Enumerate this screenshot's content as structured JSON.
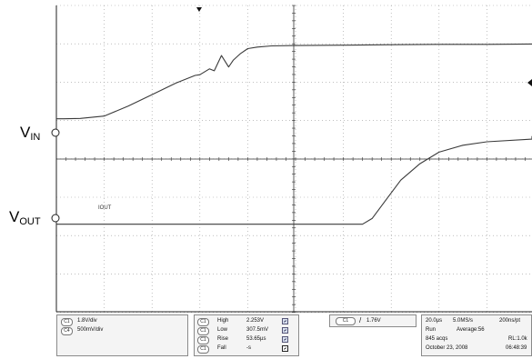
{
  "labels": {
    "vin_main": "V",
    "vin_sub": "IN",
    "vout_main": "V",
    "vout_sub": "OUT",
    "trace_tag": "IOUT"
  },
  "channels": {
    "c1_scale": "1.8V/div",
    "c4_scale": "500mV/div"
  },
  "measurements": [
    {
      "chip": "C1",
      "name": "High",
      "value": "2.253V"
    },
    {
      "chip": "C1",
      "name": "Low",
      "value": "307.5mV"
    },
    {
      "chip": "C1",
      "name": "Rise",
      "value": "53.65µs"
    },
    {
      "chip": "C1",
      "name": "Fall",
      "value": "-s"
    }
  ],
  "trigger": {
    "chip": "C1",
    "slope": "/",
    "level": "1.76V"
  },
  "acquisition": {
    "timebase": "20.0µs",
    "sample_rate": "5.0MS/s",
    "resolution": "200ns/pt",
    "mode": "Run",
    "average": "Average:56",
    "acqs": "845 acqs",
    "record_length": "RL:1.0k",
    "date": "October 23, 2008",
    "time": "06:48:39"
  },
  "chart_data": {
    "type": "line",
    "x_divisions": 10,
    "y_divisions": 8,
    "series": [
      {
        "name": "VIN",
        "x": [
          0,
          0.15,
          0.5,
          1.0,
          1.5,
          2.0,
          2.5,
          2.9,
          3.0,
          3.2,
          3.3,
          3.45,
          3.6,
          3.7,
          3.85,
          4.0,
          4.2,
          4.5,
          5.0,
          6.0,
          7.0,
          8.0,
          9.0,
          10.0
        ],
        "y": [
          1.05,
          1.05,
          1.06,
          1.12,
          1.38,
          1.68,
          1.98,
          2.18,
          2.2,
          2.35,
          2.3,
          2.7,
          2.4,
          2.58,
          2.75,
          2.88,
          2.92,
          2.95,
          2.96,
          2.97,
          2.98,
          2.99,
          2.99,
          3.0
        ]
      },
      {
        "name": "VOUT",
        "x": [
          0,
          0.15,
          2.0,
          4.0,
          6.4,
          6.6,
          6.9,
          7.2,
          7.6,
          8.0,
          8.5,
          9.0,
          10.0,
          12.0,
          15.0,
          20.0
        ],
        "y": [
          -1.7,
          -1.7,
          -1.7,
          -1.7,
          -1.7,
          -1.55,
          -1.05,
          -0.55,
          -0.12,
          0.18,
          0.36,
          0.45,
          0.52,
          0.56,
          0.58,
          0.6
        ]
      }
    ],
    "x_transition_scale": [
      0,
      0.5,
      1.0
    ]
  }
}
